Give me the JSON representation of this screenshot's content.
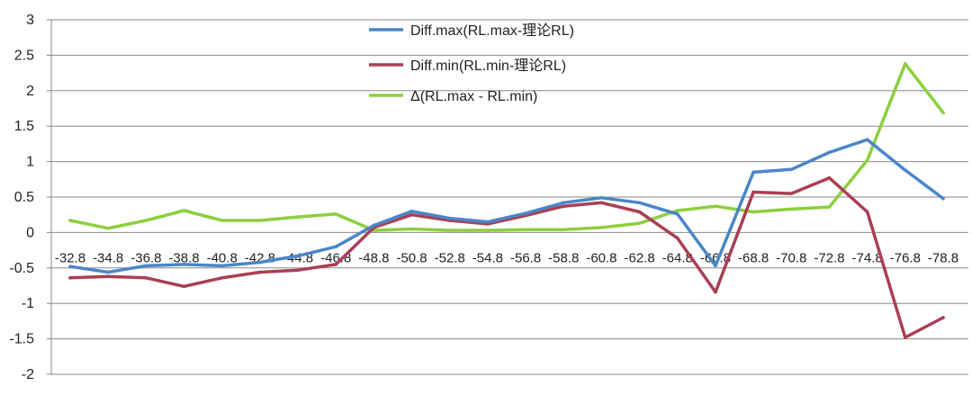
{
  "chart_data": {
    "type": "line",
    "title": "",
    "xlabel": "",
    "ylabel": "",
    "ylim": [
      -2,
      3
    ],
    "yticks": [
      3,
      2.5,
      2,
      1.5,
      1,
      0.5,
      0,
      -0.5,
      -1,
      -1.5,
      -2
    ],
    "ytick_labels": [
      "3",
      "2.5",
      "2",
      "1.5",
      "1",
      "0.5",
      "0",
      "-0.5",
      "-1",
      "-1.5",
      "-2"
    ],
    "grid": "horizontal",
    "legend_position": "top-center",
    "categories": [
      "-32.8",
      "-34.8",
      "-36.8",
      "-38.8",
      "-40.8",
      "-42.8",
      "-44.8",
      "-46.8",
      "-48.8",
      "-50.8",
      "-52.8",
      "-54.8",
      "-56.8",
      "-58.8",
      "-60.8",
      "-62.8",
      "-64.8",
      "-66.8",
      "-68.8",
      "-70.8",
      "-72.8",
      "-74.8",
      "-76.8",
      "-78.8"
    ],
    "series": [
      {
        "name": "Diff.max(RL.max-理论RL)",
        "color": "#4a86c8",
        "values": [
          -0.48,
          -0.56,
          -0.47,
          -0.45,
          -0.47,
          -0.42,
          -0.33,
          -0.2,
          0.1,
          0.3,
          0.2,
          0.15,
          0.27,
          0.42,
          0.49,
          0.42,
          0.26,
          -0.47,
          0.85,
          0.89,
          1.13,
          1.31,
          0.88,
          0.48
        ]
      },
      {
        "name": "Diff.min(RL.min-理论RL)",
        "color": "#a93f54",
        "values": [
          -0.64,
          -0.62,
          -0.64,
          -0.76,
          -0.64,
          -0.56,
          -0.53,
          -0.45,
          0.07,
          0.25,
          0.17,
          0.12,
          0.24,
          0.37,
          0.42,
          0.29,
          -0.08,
          -0.84,
          0.57,
          0.55,
          0.77,
          0.29,
          -1.48,
          -1.2
        ]
      },
      {
        "name": "Δ(RL.max  - RL.min)",
        "color": "#8ccf3f",
        "values": [
          0.17,
          0.06,
          0.17,
          0.31,
          0.17,
          0.17,
          0.22,
          0.26,
          0.03,
          0.05,
          0.03,
          0.03,
          0.04,
          0.04,
          0.07,
          0.13,
          0.31,
          0.37,
          0.29,
          0.33,
          0.36,
          1.02,
          2.38,
          1.69
        ]
      }
    ]
  }
}
